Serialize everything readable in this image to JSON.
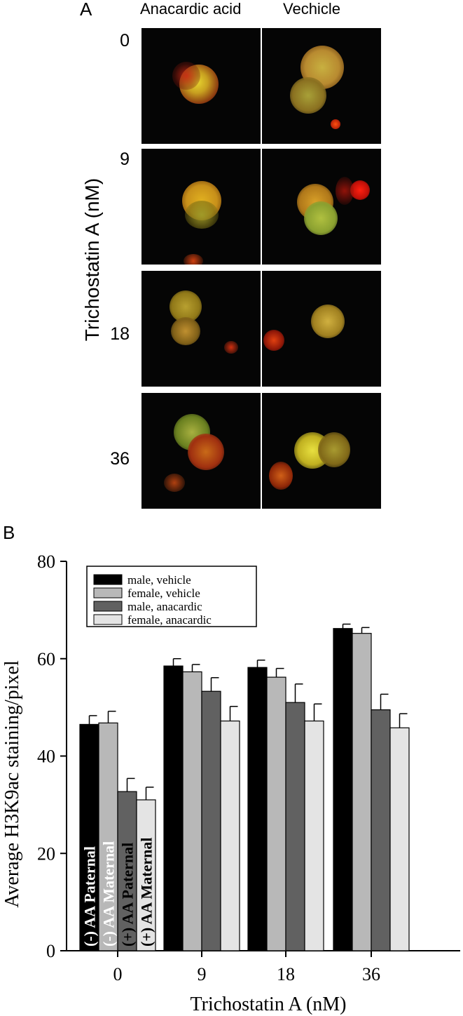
{
  "panel_a": {
    "letter": "A",
    "col_headers": [
      "Anacardic acid",
      "Vechicle"
    ],
    "row_labels": [
      "0",
      "9",
      "18",
      "36"
    ],
    "ylabel": "Trichostatin A (nM)"
  },
  "panel_b": {
    "letter": "B"
  },
  "chart_data": {
    "type": "bar",
    "categories": [
      "0",
      "9",
      "18",
      "36"
    ],
    "xlabel": "Trichostatin A (nM)",
    "ylabel": "Average H3K9ac staining/pixel",
    "ylim": [
      0,
      80
    ],
    "yticks": [
      "0",
      "20",
      "40",
      "60",
      "80"
    ],
    "legend_position": "top-left",
    "grid": false,
    "series": [
      {
        "name": "male, vehicle",
        "color": "#000000",
        "values": [
          46.5,
          58.5,
          58.2,
          66.2
        ],
        "errors": [
          1.8,
          1.5,
          1.5,
          0.9
        ]
      },
      {
        "name": "female, vehicle",
        "color": "#b8b8b8",
        "values": [
          46.8,
          57.3,
          56.2,
          65.2
        ],
        "errors": [
          2.4,
          1.5,
          1.8,
          1.2
        ]
      },
      {
        "name": "male, anacardic",
        "color": "#616161",
        "values": [
          32.7,
          53.3,
          51.0,
          49.5
        ],
        "errors": [
          2.7,
          2.8,
          3.8,
          3.2
        ]
      },
      {
        "name": "female, anacardic",
        "color": "#e4e4e4",
        "values": [
          31.0,
          47.2,
          47.2,
          45.8
        ],
        "errors": [
          2.6,
          3.0,
          3.5,
          2.9
        ]
      }
    ],
    "annotations": {
      "bar_labels_first_group": [
        "(-) AA Paternal",
        "(-) AA Maternal",
        "(+) AA Paternal",
        "(+) AA Maternal"
      ],
      "bar_label_colors": [
        "#ffffff",
        "#ffffff",
        "#000000",
        "#000000"
      ]
    }
  }
}
